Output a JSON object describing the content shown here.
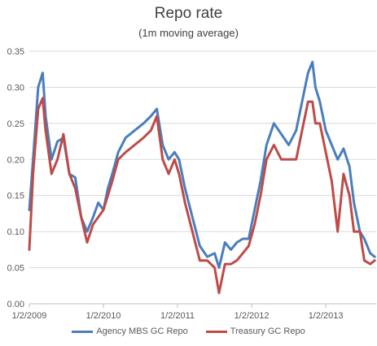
{
  "chart_data": {
    "type": "line",
    "title": "Repo rate",
    "subtitle": "(1m moving average)",
    "xlabel": "",
    "ylabel": "",
    "ylim": [
      0,
      0.35
    ],
    "y_ticks": [
      "0.00",
      "0.05",
      "0.10",
      "0.15",
      "0.20",
      "0.25",
      "0.30",
      "0.35"
    ],
    "x_ticks": [
      "1/2/2009",
      "1/2/2010",
      "1/2/2011",
      "1/2/2012",
      "1/2/2013"
    ],
    "grid": true,
    "legend_position": "bottom",
    "series": [
      {
        "name": "Agency MBS GC Repo",
        "color": "#4a7ebb",
        "x": [
          2009.0,
          2009.05,
          2009.12,
          2009.18,
          2009.22,
          2009.3,
          2009.38,
          2009.46,
          2009.54,
          2009.62,
          2009.7,
          2009.78,
          2009.86,
          2009.93,
          2010.0,
          2010.06,
          2010.12,
          2010.2,
          2010.3,
          2010.42,
          2010.54,
          2010.64,
          2010.72,
          2010.8,
          2010.88,
          2010.96,
          2011.02,
          2011.1,
          2011.2,
          2011.3,
          2011.4,
          2011.5,
          2011.56,
          2011.64,
          2011.72,
          2011.8,
          2011.88,
          2011.96,
          2012.04,
          2012.12,
          2012.2,
          2012.3,
          2012.4,
          2012.5,
          2012.6,
          2012.68,
          2012.76,
          2012.82,
          2012.86,
          2012.92,
          2013.0,
          2013.08,
          2013.16,
          2013.24,
          2013.32,
          2013.38,
          2013.46,
          2013.52,
          2013.6,
          2013.66
        ],
        "values": [
          0.13,
          0.2,
          0.3,
          0.32,
          0.26,
          0.2,
          0.225,
          0.23,
          0.18,
          0.175,
          0.12,
          0.1,
          0.12,
          0.14,
          0.13,
          0.16,
          0.18,
          0.21,
          0.23,
          0.24,
          0.25,
          0.26,
          0.27,
          0.22,
          0.2,
          0.21,
          0.2,
          0.16,
          0.12,
          0.08,
          0.065,
          0.07,
          0.05,
          0.085,
          0.075,
          0.085,
          0.09,
          0.09,
          0.13,
          0.17,
          0.22,
          0.25,
          0.235,
          0.22,
          0.24,
          0.28,
          0.32,
          0.335,
          0.3,
          0.28,
          0.24,
          0.22,
          0.2,
          0.215,
          0.19,
          0.14,
          0.1,
          0.09,
          0.07,
          0.065
        ]
      },
      {
        "name": "Treasury GC Repo",
        "color": "#be4b48",
        "x": [
          2009.0,
          2009.05,
          2009.12,
          2009.18,
          2009.22,
          2009.3,
          2009.38,
          2009.46,
          2009.54,
          2009.62,
          2009.7,
          2009.78,
          2009.86,
          2009.93,
          2010.0,
          2010.06,
          2010.12,
          2010.2,
          2010.3,
          2010.42,
          2010.54,
          2010.64,
          2010.72,
          2010.8,
          2010.88,
          2010.96,
          2011.02,
          2011.1,
          2011.2,
          2011.3,
          2011.4,
          2011.5,
          2011.56,
          2011.64,
          2011.72,
          2011.8,
          2011.88,
          2011.96,
          2012.04,
          2012.12,
          2012.2,
          2012.3,
          2012.4,
          2012.5,
          2012.6,
          2012.68,
          2012.76,
          2012.82,
          2012.86,
          2012.92,
          2013.0,
          2013.08,
          2013.16,
          2013.24,
          2013.32,
          2013.38,
          2013.46,
          2013.52,
          2013.6,
          2013.66
        ],
        "values": [
          0.075,
          0.18,
          0.27,
          0.285,
          0.24,
          0.18,
          0.2,
          0.235,
          0.18,
          0.16,
          0.12,
          0.085,
          0.11,
          0.12,
          0.13,
          0.15,
          0.17,
          0.2,
          0.21,
          0.22,
          0.23,
          0.24,
          0.26,
          0.2,
          0.18,
          0.2,
          0.18,
          0.14,
          0.1,
          0.06,
          0.06,
          0.05,
          0.015,
          0.055,
          0.055,
          0.06,
          0.07,
          0.08,
          0.11,
          0.15,
          0.2,
          0.22,
          0.2,
          0.2,
          0.2,
          0.24,
          0.28,
          0.28,
          0.25,
          0.25,
          0.21,
          0.17,
          0.1,
          0.18,
          0.15,
          0.1,
          0.1,
          0.06,
          0.055,
          0.06
        ]
      }
    ]
  }
}
